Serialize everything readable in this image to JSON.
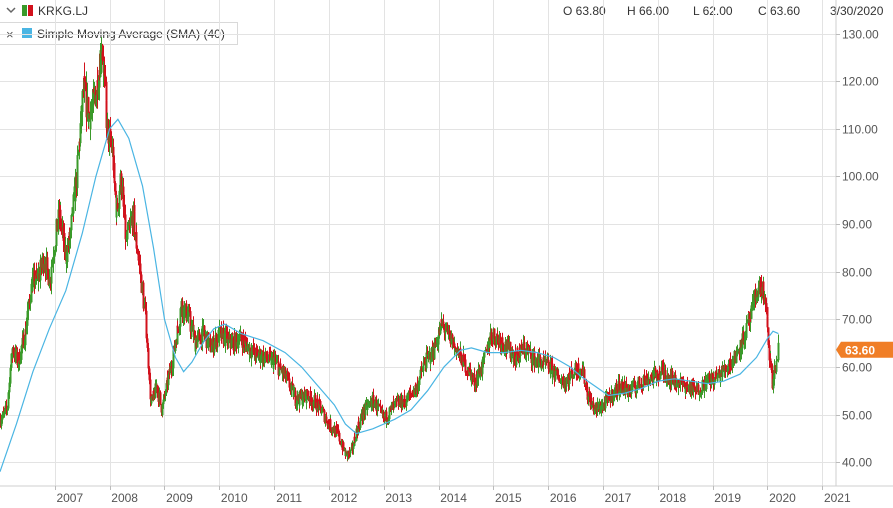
{
  "header": {
    "symbol": "KRKG.LJ",
    "open_label": "O 63.80",
    "high_label": "H 66.00",
    "low_label": "L 62.00",
    "close_label": "C 63.60",
    "date": "3/30/2020"
  },
  "indicator": {
    "close_symbol": "×",
    "label": "Simple Moving Average (SMA) (40)"
  },
  "colors": {
    "up": "#3a9a2a",
    "down": "#d2111c",
    "sma": "#4ab5e3",
    "price_tag": "#f07e26",
    "grid": "#e3e3e3",
    "axis_text": "#555555"
  },
  "chart_data": {
    "type": "candlestick",
    "ylim": [
      35,
      132
    ],
    "yticks": [
      40,
      50,
      60,
      70,
      80,
      90,
      100,
      110,
      120,
      130
    ],
    "ytick_labels": [
      "40.00",
      "50.00",
      "60.00",
      "70.00",
      "80.00",
      "90.00",
      "100.00",
      "110.00",
      "120.00",
      "130.00"
    ],
    "xlim": [
      2006.0,
      2021.25
    ],
    "xtick_labels": [
      "2007",
      "2008",
      "2009",
      "2010",
      "2011",
      "2012",
      "2013",
      "2014",
      "2015",
      "2016",
      "2017",
      "2018",
      "2019",
      "2020",
      "2021"
    ],
    "last_price_label": "63.60",
    "last_price": 63.6,
    "price_path": [
      [
        2006.0,
        49.0
      ],
      [
        2006.12,
        51.0
      ],
      [
        2006.22,
        64.0
      ],
      [
        2006.32,
        61.0
      ],
      [
        2006.45,
        67.0
      ],
      [
        2006.58,
        78.0
      ],
      [
        2006.7,
        79.0
      ],
      [
        2006.8,
        83.0
      ],
      [
        2006.9,
        78.0
      ],
      [
        2007.0,
        87.0
      ],
      [
        2007.08,
        92.0
      ],
      [
        2007.2,
        83.0
      ],
      [
        2007.3,
        90.0
      ],
      [
        2007.4,
        101.0
      ],
      [
        2007.52,
        119.0
      ],
      [
        2007.62,
        112.0
      ],
      [
        2007.75,
        118.0
      ],
      [
        2007.85,
        128.0
      ],
      [
        2007.95,
        110.0
      ],
      [
        2008.05,
        105.0
      ],
      [
        2008.12,
        92.0
      ],
      [
        2008.2,
        100.0
      ],
      [
        2008.3,
        86.0
      ],
      [
        2008.42,
        92.0
      ],
      [
        2008.55,
        80.0
      ],
      [
        2008.65,
        70.0
      ],
      [
        2008.75,
        52.0
      ],
      [
        2008.85,
        56.0
      ],
      [
        2008.95,
        51.0
      ],
      [
        2009.05,
        57.0
      ],
      [
        2009.15,
        62.0
      ],
      [
        2009.3,
        73.0
      ],
      [
        2009.45,
        70.0
      ],
      [
        2009.55,
        65.0
      ],
      [
        2009.7,
        67.0
      ],
      [
        2009.85,
        64.0
      ],
      [
        2010.0,
        67.0
      ],
      [
        2010.2,
        65.0
      ],
      [
        2010.4,
        66.0
      ],
      [
        2010.6,
        63.0
      ],
      [
        2010.8,
        62.0
      ],
      [
        2011.0,
        61.0
      ],
      [
        2011.2,
        58.0
      ],
      [
        2011.4,
        53.0
      ],
      [
        2011.6,
        54.0
      ],
      [
        2011.8,
        52.0
      ],
      [
        2012.0,
        48.0
      ],
      [
        2012.15,
        46.0
      ],
      [
        2012.3,
        41.5
      ],
      [
        2012.4,
        42.0
      ],
      [
        2012.5,
        47.0
      ],
      [
        2012.65,
        51.0
      ],
      [
        2012.8,
        53.0
      ],
      [
        2013.0,
        49.0
      ],
      [
        2013.2,
        52.0
      ],
      [
        2013.4,
        53.0
      ],
      [
        2013.6,
        56.0
      ],
      [
        2013.75,
        61.0
      ],
      [
        2013.9,
        63.0
      ],
      [
        2014.05,
        69.0
      ],
      [
        2014.2,
        66.0
      ],
      [
        2014.35,
        63.0
      ],
      [
        2014.5,
        60.0
      ],
      [
        2014.65,
        57.0
      ],
      [
        2014.8,
        60.0
      ],
      [
        2014.95,
        67.0
      ],
      [
        2015.1,
        66.0
      ],
      [
        2015.25,
        64.0
      ],
      [
        2015.4,
        62.0
      ],
      [
        2015.55,
        64.0
      ],
      [
        2015.7,
        62.0
      ],
      [
        2015.85,
        61.0
      ],
      [
        2016.0,
        60.0
      ],
      [
        2016.15,
        58.0
      ],
      [
        2016.3,
        57.0
      ],
      [
        2016.45,
        59.0
      ],
      [
        2016.6,
        60.0
      ],
      [
        2016.72,
        54.0
      ],
      [
        2016.85,
        51.0
      ],
      [
        2017.0,
        52.0
      ],
      [
        2017.15,
        54.0
      ],
      [
        2017.3,
        56.0
      ],
      [
        2017.5,
        55.0
      ],
      [
        2017.7,
        57.0
      ],
      [
        2017.9,
        58.0
      ],
      [
        2018.1,
        59.0
      ],
      [
        2018.3,
        57.0
      ],
      [
        2018.5,
        56.0
      ],
      [
        2018.7,
        55.0
      ],
      [
        2018.9,
        57.0
      ],
      [
        2019.1,
        58.0
      ],
      [
        2019.25,
        60.0
      ],
      [
        2019.4,
        62.0
      ],
      [
        2019.55,
        66.0
      ],
      [
        2019.7,
        71.0
      ],
      [
        2019.8,
        76.0
      ],
      [
        2019.9,
        77.0
      ],
      [
        2019.97,
        72.0
      ],
      [
        2020.03,
        62.0
      ],
      [
        2020.08,
        56.0
      ],
      [
        2020.14,
        60.0
      ],
      [
        2020.2,
        63.6
      ]
    ],
    "sma_path": [
      [
        2006.0,
        38.0
      ],
      [
        2006.3,
        48.0
      ],
      [
        2006.6,
        59.0
      ],
      [
        2006.9,
        68.0
      ],
      [
        2007.2,
        76.0
      ],
      [
        2007.5,
        88.0
      ],
      [
        2007.75,
        100.0
      ],
      [
        2008.0,
        110.0
      ],
      [
        2008.15,
        112.0
      ],
      [
        2008.35,
        108.0
      ],
      [
        2008.6,
        98.0
      ],
      [
        2008.8,
        85.0
      ],
      [
        2009.0,
        70.0
      ],
      [
        2009.2,
        62.0
      ],
      [
        2009.35,
        59.0
      ],
      [
        2009.5,
        61.0
      ],
      [
        2009.7,
        65.0
      ],
      [
        2009.9,
        68.0
      ],
      [
        2010.1,
        69.0
      ],
      [
        2010.4,
        67.0
      ],
      [
        2010.8,
        65.5
      ],
      [
        2011.2,
        63.0
      ],
      [
        2011.5,
        60.0
      ],
      [
        2011.8,
        56.0
      ],
      [
        2012.1,
        52.0
      ],
      [
        2012.3,
        48.0
      ],
      [
        2012.5,
        46.0
      ],
      [
        2012.8,
        47.0
      ],
      [
        2013.2,
        49.0
      ],
      [
        2013.5,
        51.0
      ],
      [
        2013.8,
        55.0
      ],
      [
        2014.1,
        60.0
      ],
      [
        2014.4,
        63.5
      ],
      [
        2014.6,
        64.0
      ],
      [
        2014.9,
        63.0
      ],
      [
        2015.2,
        63.0
      ],
      [
        2015.5,
        63.5
      ],
      [
        2015.8,
        63.0
      ],
      [
        2016.1,
        62.0
      ],
      [
        2016.4,
        60.0
      ],
      [
        2016.6,
        58.0
      ],
      [
        2016.85,
        56.0
      ],
      [
        2017.1,
        54.0
      ],
      [
        2017.4,
        54.5
      ],
      [
        2017.7,
        55.5
      ],
      [
        2018.0,
        57.0
      ],
      [
        2018.3,
        57.5
      ],
      [
        2018.6,
        57.0
      ],
      [
        2018.9,
        56.5
      ],
      [
        2019.2,
        57.0
      ],
      [
        2019.5,
        58.5
      ],
      [
        2019.8,
        62.0
      ],
      [
        2020.0,
        66.0
      ],
      [
        2020.1,
        67.5
      ],
      [
        2020.2,
        67.0
      ]
    ]
  }
}
